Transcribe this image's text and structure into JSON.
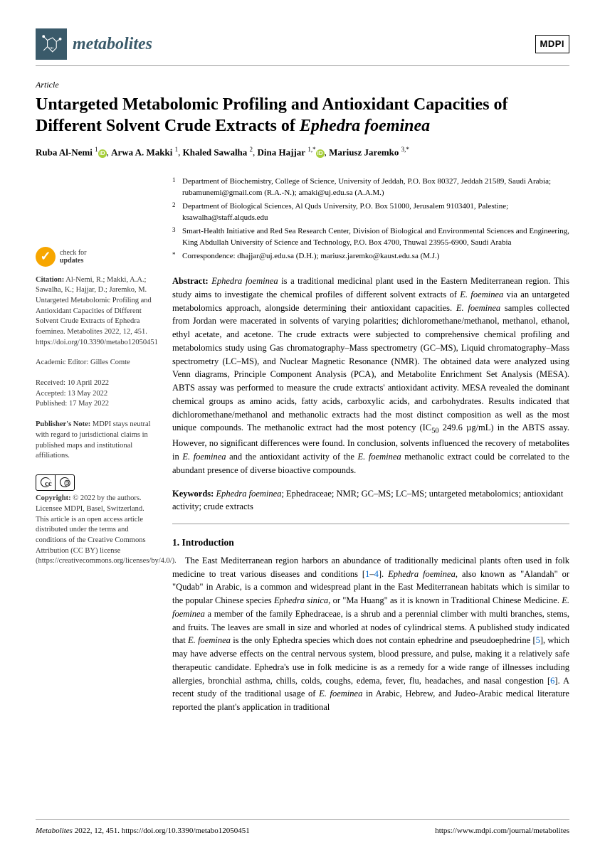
{
  "journal": {
    "name": "metabolites",
    "publisher": "MDPI"
  },
  "article_type": "Article",
  "title_plain": "Untargeted Metabolomic Profiling and Antioxidant Capacities of Different Solvent Crude Extracts of ",
  "title_italic": "Ephedra foeminea",
  "authors": [
    {
      "name": "Ruba Al-Nemi",
      "sup": "1",
      "orcid": true
    },
    {
      "name": "Arwa A. Makki",
      "sup": "1"
    },
    {
      "name": "Khaled Sawalha",
      "sup": "2"
    },
    {
      "name": "Dina Hajjar",
      "sup": "1,",
      "star": true,
      "orcid": true
    },
    {
      "name": "Mariusz Jaremko",
      "sup": "3,",
      "star": true
    }
  ],
  "affiliations": [
    {
      "num": "1",
      "text": "Department of Biochemistry, College of Science, University of Jeddah, P.O. Box 80327, Jeddah 21589, Saudi Arabia; rubamunemi@gmail.com (R.A.-N.); amaki@uj.edu.sa (A.A.M.)"
    },
    {
      "num": "2",
      "text": "Department of Biological Sciences, Al Quds University, P.O. Box 51000, Jerusalem 9103401, Palestine; ksawalha@staff.alquds.edu"
    },
    {
      "num": "3",
      "text": "Smart-Health Initiative and Red Sea Research Center, Division of Biological and Environmental Sciences and Engineering, King Abdullah University of Science and Technology, P.O. Box 4700, Thuwal 23955-6900, Saudi Arabia"
    },
    {
      "num": "*",
      "text": "Correspondence: dhajjar@uj.edu.sa (D.H.); mariusz.jaremko@kaust.edu.sa (M.J.)"
    }
  ],
  "abstract_label": "Abstract:",
  "abstract": "Ephedra foeminea is a traditional medicinal plant used in the Eastern Mediterranean region. This study aims to investigate the chemical profiles of different solvent extracts of E. foeminea via an untargeted metabolomics approach, alongside determining their antioxidant capacities. E. foeminea samples collected from Jordan were macerated in solvents of varying polarities; dichloromethane/methanol, methanol, ethanol, ethyl acetate, and acetone. The crude extracts were subjected to comprehensive chemical profiling and metabolomics study using Gas chromatography–Mass spectrometry (GC–MS), Liquid chromatography–Mass spectrometry (LC–MS), and Nuclear Magnetic Resonance (NMR). The obtained data were analyzed using Venn diagrams, Principle Component Analysis (PCA), and Metabolite Enrichment Set Analysis (MESA). ABTS assay was performed to measure the crude extracts' antioxidant activity. MESA revealed the dominant chemical groups as amino acids, fatty acids, carboxylic acids, and carbohydrates. Results indicated that dichloromethane/methanol and methanolic extracts had the most distinct composition as well as the most unique compounds. The methanolic extract had the most potency (IC50 249.6 µg/mL) in the ABTS assay. However, no significant differences were found. In conclusion, solvents influenced the recovery of metabolites in E. foeminea and the antioxidant activity of the E. foeminea methanolic extract could be correlated to the abundant presence of diverse bioactive compounds.",
  "keywords_label": "Keywords:",
  "keywords": "Ephedra foeminea; Ephedraceae; NMR; GC–MS; LC–MS; untargeted metabolomics; antioxidant activity; crude extracts",
  "section1": {
    "num": "1.",
    "title": "Introduction"
  },
  "intro": "The East Mediterranean region harbors an abundance of traditionally medicinal plants often used in folk medicine to treat various diseases and conditions [1–4]. Ephedra foeminea, also known as \"Alandah\" or \"Qudab\" in Arabic, is a common and widespread plant in the East Mediterranean habitats which is similar to the popular Chinese species Ephedra sinica, or \"Ma Huang\" as it is known in Traditional Chinese Medicine. E. foeminea a member of the family Ephedraceae, is a shrub and a perennial climber with multi branches, stems, and fruits. The leaves are small in size and whorled at nodes of cylindrical stems. A published study indicated that E. foeminea is the only Ephedra species which does not contain ephedrine and pseudoephedrine [5], which may have adverse effects on the central nervous system, blood pressure, and pulse, making it a relatively safe therapeutic candidate. Ephedra's use in folk medicine is as a remedy for a wide range of illnesses including allergies, bronchial asthma, chills, colds, coughs, edema, fever, flu, headaches, and nasal congestion [6]. A recent study of the traditional usage of E. foeminea in Arabic, Hebrew, and Judeo-Arabic medical literature reported the plant's application in traditional",
  "sidebar": {
    "check": {
      "line1": "check for",
      "line2": "updates"
    },
    "citation_label": "Citation:",
    "citation": "Al-Nemi, R.; Makki, A.A.; Sawalha, K.; Hajjar, D.; Jaremko, M. Untargeted Metabolomic Profiling and Antioxidant Capacities of Different Solvent Crude Extracts of Ephedra foeminea. Metabolites 2022, 12, 451. https://doi.org/10.3390/metabo12050451",
    "editor_label": "Academic Editor:",
    "editor": "Gilles Comte",
    "received": "Received: 10 April 2022",
    "accepted": "Accepted: 13 May 2022",
    "published": "Published: 17 May 2022",
    "pubnote_label": "Publisher's Note:",
    "pubnote": "MDPI stays neutral with regard to jurisdictional claims in published maps and institutional affiliations.",
    "copyright_label": "Copyright:",
    "copyright": "© 2022 by the authors. Licensee MDPI, Basel, Switzerland. This article is an open access article distributed under the terms and conditions of the Creative Commons Attribution (CC BY) license (https://creativecommons.org/licenses/by/4.0/)."
  },
  "footer": {
    "left": "Metabolites 2022, 12, 451. https://doi.org/10.3390/metabo12050451",
    "right": "https://www.mdpi.com/journal/metabolites"
  },
  "colors": {
    "accent": "#3a5a6a",
    "orcid": "#a6ce39",
    "check": "#f7a600",
    "link": "#0066cc"
  }
}
